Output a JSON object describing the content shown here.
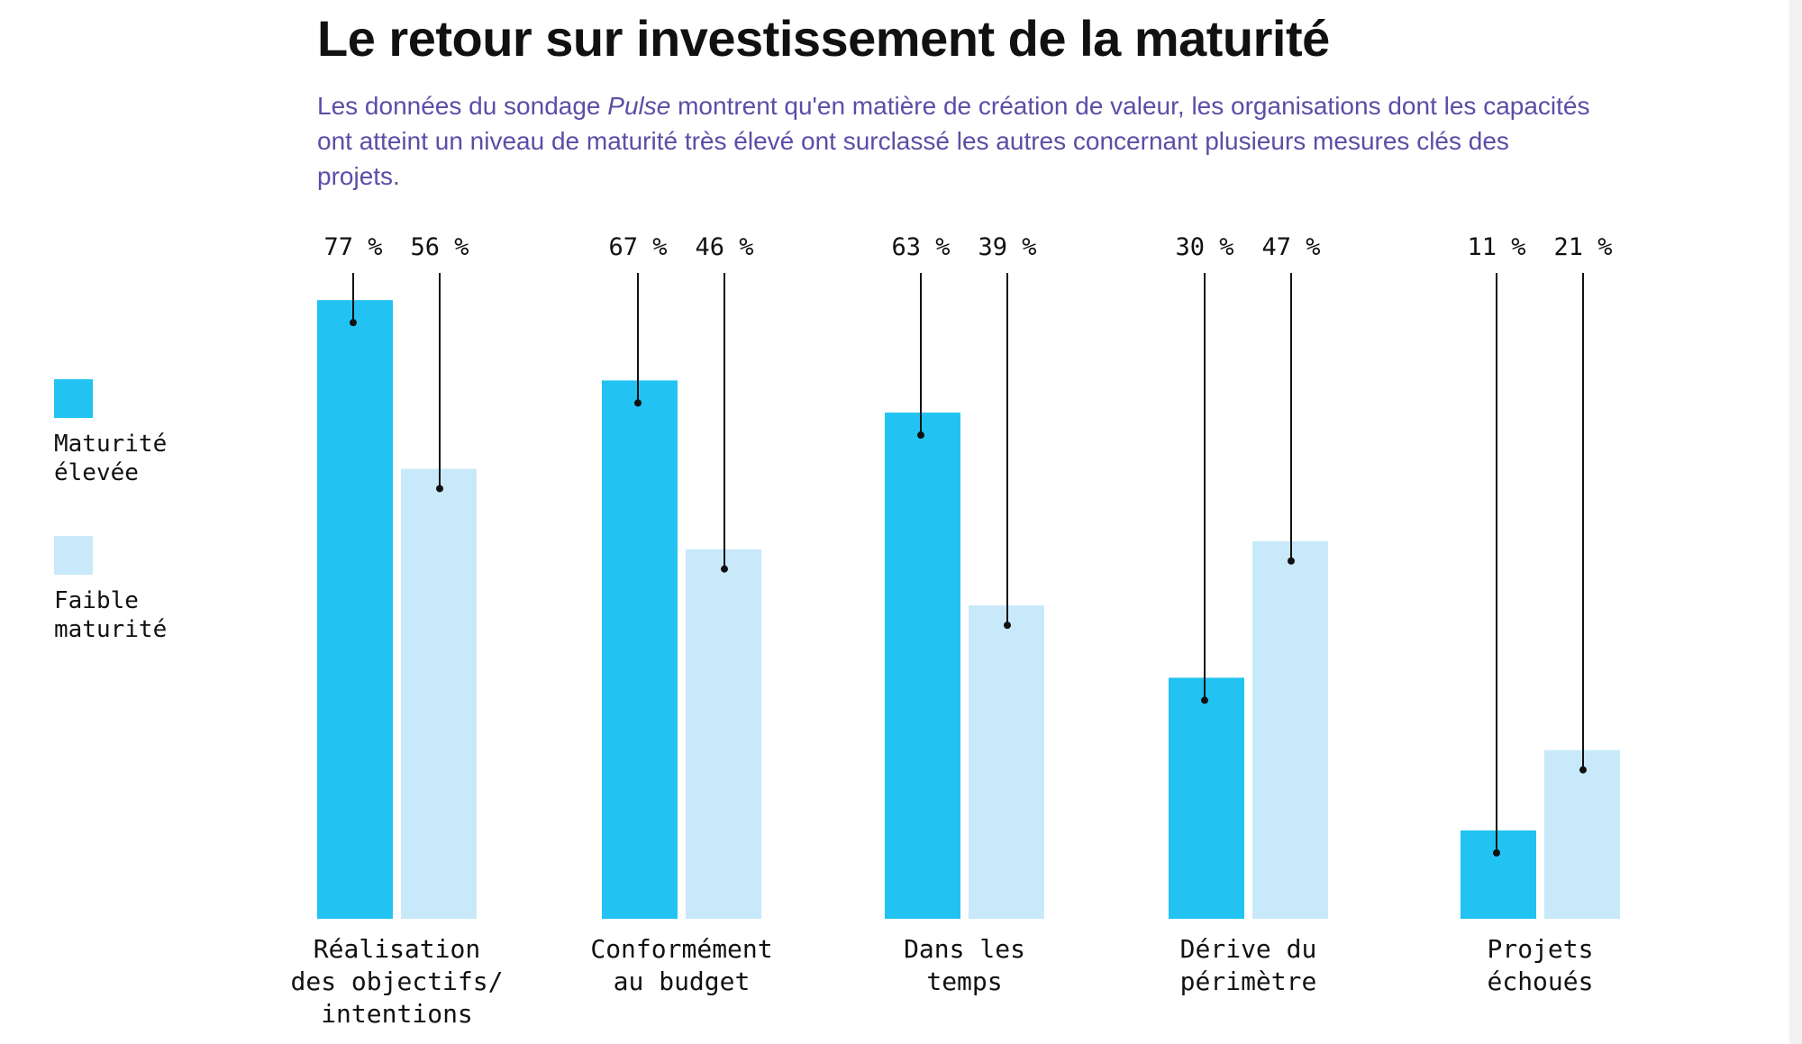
{
  "header": {
    "title": "Le retour sur investissement de la maturité",
    "subtitle_before": "Les données du sondage ",
    "subtitle_em": "Pulse",
    "subtitle_after": " montrent qu'en matière de création de valeur, les organisations dont les capacités ont atteint un niveau de maturité très élevé ont surclassé les autres concernant plusieurs mesures clés des projets."
  },
  "colors": {
    "high": "#22c3f2",
    "low": "#c8e9f9",
    "text": "#111111",
    "subtitle": "#5a4ea6"
  },
  "chart_data": {
    "type": "bar",
    "title": "Le retour sur investissement de la maturité",
    "categories": [
      [
        "Réalisation",
        "des objectifs/",
        "intentions"
      ],
      [
        "Conformément",
        "au budget"
      ],
      [
        "Dans les",
        "temps"
      ],
      [
        "Dérive du",
        "périmètre"
      ],
      [
        "Projets",
        "échoués"
      ]
    ],
    "series": [
      {
        "name": "Maturité élevée",
        "legend_lines": [
          "Maturité",
          "élevée"
        ],
        "color": "#22c3f2",
        "values": [
          77,
          67,
          63,
          30,
          11
        ],
        "labels": [
          "77 %",
          "67 %",
          "63 %",
          "30 %",
          "11 %"
        ]
      },
      {
        "name": "Faible maturité",
        "legend_lines": [
          "Faible",
          "maturité"
        ],
        "color": "#c8e9f9",
        "values": [
          56,
          46,
          39,
          47,
          21
        ],
        "labels": [
          "56 %",
          "46 %",
          "39 %",
          "47 %",
          "21 %"
        ]
      }
    ],
    "ylim": [
      0,
      100
    ],
    "xlabel": "",
    "ylabel": "",
    "grid": false,
    "legend": "left"
  }
}
